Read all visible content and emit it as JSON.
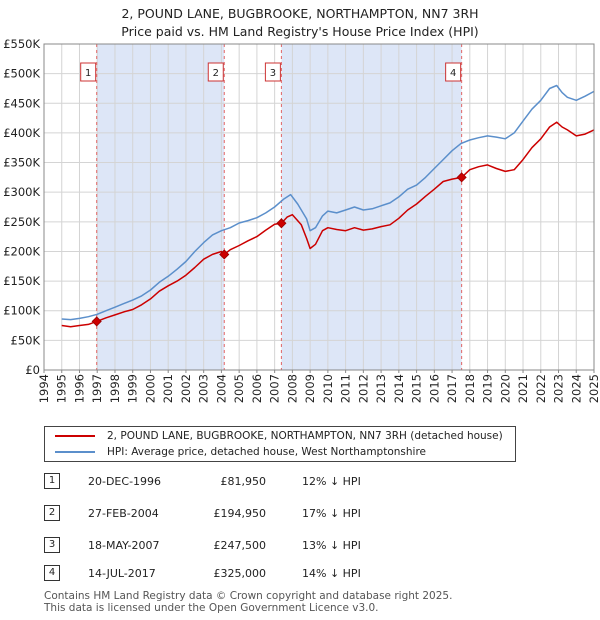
{
  "title_line1": "2, POUND LANE, BUGBROOKE, NORTHAMPTON, NN7 3RH",
  "title_line2": "Price paid vs. HM Land Registry's House Price Index (HPI)",
  "legend": {
    "property": "2, POUND LANE, BUGBROOKE, NORTHAMPTON, NN7 3RH (detached house)",
    "hpi": "HPI: Average price, detached house, West Northamptonshire"
  },
  "colors": {
    "property": "#cc0000",
    "hpi": "#5b8fcb",
    "shade": "#dde6f7",
    "grid": "#d4d4d4",
    "vline": "#e06666"
  },
  "sales": [
    {
      "num": "1",
      "date": "20-DEC-1996",
      "price": "£81,950",
      "hpi": "12% ↓ HPI"
    },
    {
      "num": "2",
      "date": "27-FEB-2004",
      "price": "£194,950",
      "hpi": "17% ↓ HPI"
    },
    {
      "num": "3",
      "date": "18-MAY-2007",
      "price": "£247,500",
      "hpi": "13% ↓ HPI"
    },
    {
      "num": "4",
      "date": "14-JUL-2017",
      "price": "£325,000",
      "hpi": "14% ↓ HPI"
    }
  ],
  "footer_line1": "Contains HM Land Registry data © Crown copyright and database right 2025.",
  "footer_line2": "This data is licensed under the Open Government Licence v3.0.",
  "chart_data": {
    "type": "line",
    "title": "2, POUND LANE, BUGBROOKE, NORTHAMPTON, NN7 3RH",
    "subtitle": "Price paid vs. HM Land Registry's House Price Index (HPI)",
    "xlabel": "",
    "ylabel": "",
    "xlim": [
      1994,
      2025
    ],
    "ylim": [
      0,
      550000
    ],
    "x_ticks": [
      1994,
      1995,
      1996,
      1997,
      1998,
      1999,
      2000,
      2001,
      2002,
      2003,
      2004,
      2005,
      2006,
      2007,
      2008,
      2009,
      2010,
      2011,
      2012,
      2013,
      2014,
      2015,
      2016,
      2017,
      2018,
      2019,
      2020,
      2021,
      2022,
      2023,
      2024,
      2025
    ],
    "y_ticks": [
      {
        "value": 0,
        "label": "£0"
      },
      {
        "value": 50000,
        "label": "£50K"
      },
      {
        "value": 100000,
        "label": "£100K"
      },
      {
        "value": 150000,
        "label": "£150K"
      },
      {
        "value": 200000,
        "label": "£200K"
      },
      {
        "value": 250000,
        "label": "£250K"
      },
      {
        "value": 300000,
        "label": "£300K"
      },
      {
        "value": 350000,
        "label": "£350K"
      },
      {
        "value": 400000,
        "label": "£400K"
      },
      {
        "value": 450000,
        "label": "£450K"
      },
      {
        "value": 500000,
        "label": "£500K"
      },
      {
        "value": 550000,
        "label": "£550K"
      }
    ],
    "shaded_periods": [
      [
        1996.97,
        2004.16
      ],
      [
        2007.38,
        2017.54
      ]
    ],
    "series": [
      {
        "name": "2, POUND LANE, BUGBROOKE, NORTHAMPTON, NN7 3RH (detached house)",
        "x": [
          1995.0,
          1995.5,
          1996.0,
          1996.5,
          1996.97,
          1997.5,
          1998.0,
          1998.5,
          1999.0,
          1999.5,
          2000.0,
          2000.5,
          2001.0,
          2001.5,
          2002.0,
          2002.5,
          2003.0,
          2003.5,
          2004.0,
          2004.16,
          2004.5,
          2005.0,
          2005.5,
          2006.0,
          2006.5,
          2007.0,
          2007.38,
          2007.7,
          2008.0,
          2008.5,
          2008.8,
          2009.0,
          2009.3,
          2009.7,
          2010.0,
          2010.5,
          2011.0,
          2011.5,
          2012.0,
          2012.5,
          2013.0,
          2013.5,
          2014.0,
          2014.5,
          2015.0,
          2015.5,
          2016.0,
          2016.5,
          2017.0,
          2017.54,
          2018.0,
          2018.5,
          2019.0,
          2019.5,
          2020.0,
          2020.5,
          2021.0,
          2021.5,
          2022.0,
          2022.5,
          2022.9,
          2023.2,
          2023.5,
          2024.0,
          2024.5,
          2025.0
        ],
        "y": [
          75000,
          73000,
          75000,
          77000,
          81950,
          88000,
          93000,
          98000,
          102000,
          110000,
          120000,
          133000,
          142000,
          150000,
          160000,
          173000,
          187000,
          195000,
          200000,
          194950,
          203000,
          210000,
          218000,
          225000,
          236000,
          246000,
          247500,
          258000,
          262000,
          245000,
          222000,
          205000,
          212000,
          235000,
          240000,
          237000,
          235000,
          240000,
          236000,
          238000,
          242000,
          245000,
          256000,
          270000,
          280000,
          293000,
          305000,
          318000,
          322000,
          325000,
          338000,
          343000,
          346000,
          340000,
          335000,
          338000,
          355000,
          375000,
          390000,
          410000,
          418000,
          410000,
          405000,
          395000,
          398000,
          405000
        ]
      },
      {
        "name": "HPI: Average price, detached house, West Northamptonshire",
        "x": [
          1995.0,
          1995.5,
          1996.0,
          1996.5,
          1997.0,
          1997.5,
          1998.0,
          1998.5,
          1999.0,
          1999.5,
          2000.0,
          2000.5,
          2001.0,
          2001.5,
          2002.0,
          2002.5,
          2003.0,
          2003.5,
          2004.0,
          2004.5,
          2005.0,
          2005.5,
          2006.0,
          2006.5,
          2007.0,
          2007.5,
          2007.9,
          2008.3,
          2008.8,
          2009.0,
          2009.3,
          2009.7,
          2010.0,
          2010.5,
          2011.0,
          2011.5,
          2012.0,
          2012.5,
          2013.0,
          2013.5,
          2014.0,
          2014.5,
          2015.0,
          2015.5,
          2016.0,
          2016.5,
          2017.0,
          2017.5,
          2018.0,
          2018.5,
          2019.0,
          2019.5,
          2020.0,
          2020.5,
          2021.0,
          2021.5,
          2022.0,
          2022.5,
          2022.9,
          2023.2,
          2023.5,
          2024.0,
          2024.5,
          2025.0
        ],
        "y": [
          86000,
          85000,
          87000,
          90000,
          94000,
          100000,
          106000,
          112000,
          118000,
          125000,
          135000,
          148000,
          158000,
          170000,
          183000,
          200000,
          215000,
          228000,
          235000,
          240000,
          248000,
          252000,
          257000,
          265000,
          275000,
          288000,
          296000,
          280000,
          255000,
          235000,
          240000,
          260000,
          268000,
          265000,
          270000,
          275000,
          270000,
          272000,
          277000,
          282000,
          292000,
          305000,
          312000,
          325000,
          340000,
          355000,
          370000,
          382000,
          388000,
          392000,
          395000,
          393000,
          390000,
          400000,
          420000,
          440000,
          455000,
          475000,
          480000,
          468000,
          460000,
          455000,
          462000,
          470000
        ]
      }
    ],
    "sale_markers": [
      {
        "label": "1",
        "x": 1996.97,
        "y": 81950
      },
      {
        "label": "2",
        "x": 2004.16,
        "y": 194950
      },
      {
        "label": "3",
        "x": 2007.38,
        "y": 247500
      },
      {
        "label": "4",
        "x": 2017.54,
        "y": 325000
      }
    ]
  }
}
